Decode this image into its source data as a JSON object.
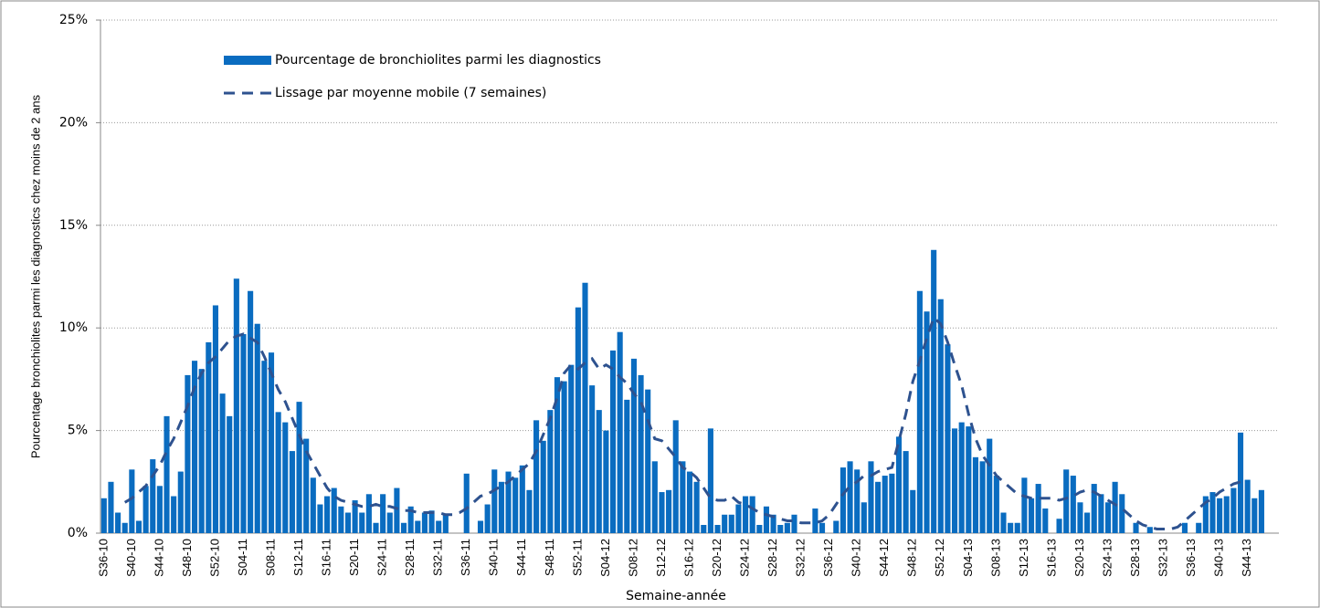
{
  "chart_data": {
    "type": "bar",
    "x_label": "Semaine-année",
    "y_label": "Pourcentage bronchiolites parmi les diagnostics chez moins de 2 ans",
    "categories": [
      "S36-10",
      null,
      null,
      null,
      "S40-10",
      null,
      null,
      null,
      "S44-10",
      null,
      null,
      null,
      "S48-10",
      null,
      null,
      null,
      "S52-10",
      null,
      null,
      null,
      "S04-11",
      null,
      null,
      null,
      "S08-11",
      null,
      null,
      null,
      "S12-11",
      null,
      null,
      null,
      "S16-11",
      null,
      null,
      null,
      "S20-11",
      null,
      null,
      null,
      "S24-11",
      null,
      null,
      null,
      "S28-11",
      null,
      null,
      null,
      "S32-11",
      null,
      null,
      null,
      "S36-11",
      null,
      null,
      null,
      "S40-11",
      null,
      null,
      null,
      "S44-11",
      null,
      null,
      null,
      "S48-11",
      null,
      null,
      null,
      "S52-11",
      null,
      null,
      null,
      "S04-12",
      null,
      null,
      null,
      "S08-12",
      null,
      null,
      null,
      "S12-12",
      null,
      null,
      null,
      "S16-12",
      null,
      null,
      null,
      "S20-12",
      null,
      null,
      null,
      "S24-12",
      null,
      null,
      null,
      "S28-12",
      null,
      null,
      null,
      "S32-12",
      null,
      null,
      null,
      "S36-12",
      null,
      null,
      null,
      "S40-12",
      null,
      null,
      null,
      "S44-12",
      null,
      null,
      null,
      "S48-12",
      null,
      null,
      null,
      "S52-12",
      null,
      null,
      null,
      "S04-13",
      null,
      null,
      null,
      "S08-13",
      null,
      null,
      null,
      "S12-13",
      null,
      null,
      null,
      "S16-13",
      null,
      null,
      null,
      "S20-13",
      null,
      null,
      null,
      "S24-13",
      null,
      null,
      null,
      "S28-13",
      null,
      null,
      null,
      "S32-13",
      null,
      null,
      null,
      "S36-13",
      null,
      null,
      null,
      "S40-13",
      null,
      null,
      null,
      "S44-13",
      null,
      null,
      null,
      null
    ],
    "series": [
      {
        "name": "Pourcentage de bronchiolites parmi les diagnostics",
        "type": "bar",
        "color": "#0a6cc0",
        "values": [
          1.7,
          2.5,
          1.0,
          0.5,
          3.1,
          0.6,
          2.3,
          3.6,
          2.3,
          5.7,
          1.8,
          3.0,
          7.7,
          8.4,
          8.0,
          9.3,
          11.1,
          6.8,
          5.7,
          12.4,
          9.7,
          11.8,
          10.2,
          8.4,
          8.8,
          5.9,
          5.4,
          4.0,
          6.4,
          4.6,
          2.7,
          1.4,
          1.8,
          2.2,
          1.3,
          1.0,
          1.6,
          1.0,
          1.9,
          0.5,
          1.9,
          1.0,
          2.2,
          0.5,
          1.3,
          0.6,
          1.0,
          1.1,
          0.6,
          0.9,
          null,
          null,
          2.9,
          null,
          0.6,
          1.4,
          3.1,
          2.5,
          3.0,
          2.7,
          3.3,
          2.1,
          5.5,
          4.5,
          6.0,
          7.6,
          7.4,
          8.2,
          11.0,
          12.2,
          7.2,
          6.0,
          5.0,
          8.9,
          9.8,
          6.5,
          8.5,
          7.7,
          7.0,
          3.5,
          2.0,
          2.1,
          5.5,
          3.5,
          3.0,
          2.5,
          0.4,
          5.1,
          0.4,
          0.9,
          0.9,
          1.4,
          1.8,
          1.8,
          0.4,
          1.3,
          0.9,
          0.4,
          0.5,
          0.9,
          null,
          null,
          1.2,
          0.5,
          null,
          0.6,
          3.2,
          3.5,
          3.1,
          1.5,
          3.5,
          2.5,
          2.8,
          2.9,
          4.7,
          4.0,
          2.1,
          11.8,
          10.8,
          13.8,
          11.4,
          9.2,
          5.1,
          5.4,
          5.2,
          3.7,
          3.5,
          4.6,
          2.8,
          1.0,
          0.5,
          0.5,
          2.7,
          1.7,
          2.4,
          1.2,
          null,
          0.7,
          3.1,
          2.8,
          1.5,
          1.0,
          2.4,
          1.9,
          1.5,
          2.5,
          1.9,
          null,
          0.5,
          null,
          0.3,
          null,
          null,
          null,
          null,
          0.5,
          null,
          0.5,
          1.8,
          2.0,
          1.7,
          1.8,
          2.2,
          4.9,
          2.6,
          1.7,
          2.1,
          null,
          null
        ]
      },
      {
        "name": "Lissage par moyenne mobile (7 semaines)",
        "type": "line",
        "dashed": true,
        "color": "#2e528f",
        "values": [
          null,
          null,
          null,
          1.5,
          1.7,
          2.0,
          2.3,
          2.8,
          3.3,
          4.0,
          4.6,
          5.4,
          6.2,
          7.1,
          7.8,
          8.3,
          8.6,
          9.0,
          9.4,
          9.6,
          9.7,
          9.5,
          9.3,
          8.6,
          7.8,
          7.0,
          6.4,
          5.6,
          4.8,
          4.0,
          3.4,
          2.8,
          2.2,
          1.8,
          1.6,
          1.5,
          1.4,
          1.3,
          1.3,
          1.4,
          1.3,
          1.3,
          1.2,
          1.1,
          1.1,
          1.0,
          1.0,
          1.0,
          1.0,
          0.9,
          0.9,
          1.0,
          1.2,
          1.5,
          1.8,
          1.9,
          2.1,
          2.3,
          2.5,
          2.8,
          3.1,
          3.4,
          4.0,
          4.8,
          5.6,
          6.6,
          7.8,
          8.2,
          8.0,
          8.3,
          8.5,
          8.0,
          8.2,
          8.0,
          7.6,
          7.3,
          6.8,
          6.4,
          5.5,
          4.6,
          4.5,
          4.1,
          3.7,
          3.2,
          3.0,
          2.7,
          2.2,
          1.7,
          1.6,
          1.6,
          1.8,
          1.5,
          1.4,
          1.2,
          1.0,
          0.9,
          0.8,
          0.7,
          0.6,
          0.6,
          0.5,
          0.5,
          0.5,
          0.6,
          0.9,
          1.4,
          1.9,
          2.3,
          2.5,
          2.8,
          2.8,
          3.0,
          3.1,
          3.2,
          4.5,
          5.8,
          7.4,
          8.4,
          9.5,
          10.5,
          10.2,
          9.3,
          8.2,
          7.2,
          5.8,
          4.6,
          3.8,
          3.3,
          2.8,
          2.5,
          2.2,
          1.9,
          1.8,
          1.7,
          1.7,
          1.7,
          1.7,
          1.6,
          1.7,
          1.8,
          2.0,
          2.1,
          2.0,
          1.8,
          1.6,
          1.4,
          1.2,
          0.9,
          0.6,
          0.4,
          0.3,
          0.2,
          0.2,
          0.2,
          0.3,
          0.6,
          0.9,
          1.2,
          1.5,
          1.7,
          2.0,
          2.2,
          2.4,
          2.5,
          null,
          null,
          null,
          null,
          null
        ]
      }
    ],
    "ylim": [
      0,
      25
    ],
    "yticks": [
      {
        "value": 0,
        "label": "0%"
      },
      {
        "value": 5,
        "label": "5%"
      },
      {
        "value": 10,
        "label": "10%"
      },
      {
        "value": 15,
        "label": "15%"
      },
      {
        "value": 20,
        "label": "20%"
      },
      {
        "value": 25,
        "label": "25%"
      }
    ],
    "grid": true,
    "legend": "top-left"
  }
}
